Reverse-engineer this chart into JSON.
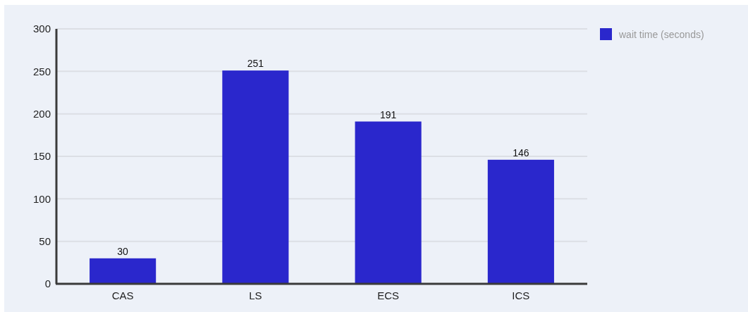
{
  "chart_data": {
    "type": "bar",
    "categories": [
      "CAS",
      "LS",
      "ECS",
      "ICS"
    ],
    "series": [
      {
        "name": "wait time (seconds)",
        "color": "#2a27cc",
        "values": [
          30,
          251,
          191,
          146
        ]
      }
    ],
    "ylim": [
      0,
      300
    ],
    "yticks": [
      0,
      50,
      100,
      150,
      200,
      250,
      300
    ],
    "grid": "y",
    "legend": "top right",
    "data_labels": true
  }
}
